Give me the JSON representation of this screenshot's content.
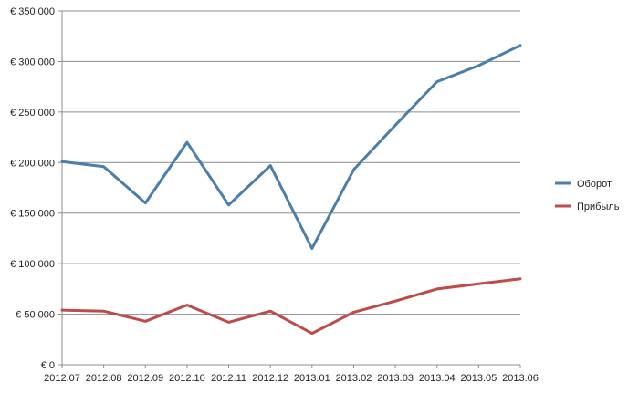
{
  "chart_data": {
    "type": "line",
    "categories": [
      "2012.07",
      "2012.08",
      "2012.09",
      "2012.10",
      "2012.11",
      "2012.12",
      "2013.01",
      "2013.02",
      "2013.03",
      "2013.04",
      "2013.05",
      "2013.06"
    ],
    "series": [
      {
        "name": "Оборот",
        "color": "#4a7eab",
        "values": [
          201000,
          196000,
          160000,
          220000,
          158000,
          197000,
          115000,
          193000,
          237000,
          280000,
          296000,
          316000
        ]
      },
      {
        "name": "Прибыль",
        "color": "#be4b48",
        "values": [
          54000,
          53000,
          43000,
          59000,
          42000,
          53000,
          31000,
          52000,
          63000,
          75000,
          80000,
          85000
        ]
      }
    ],
    "ylim": [
      0,
      350000
    ],
    "y_ticks": [
      0,
      50000,
      100000,
      150000,
      200000,
      250000,
      300000,
      350000
    ],
    "y_tick_labels": [
      "€ 0",
      "€ 50 000",
      "€ 100 000",
      "€ 150 000",
      "€ 200 000",
      "€ 250 000",
      "€ 300 000",
      "€ 350 000"
    ],
    "title": "",
    "xlabel": "",
    "ylabel": "",
    "grid": true,
    "legend_position": "right"
  }
}
